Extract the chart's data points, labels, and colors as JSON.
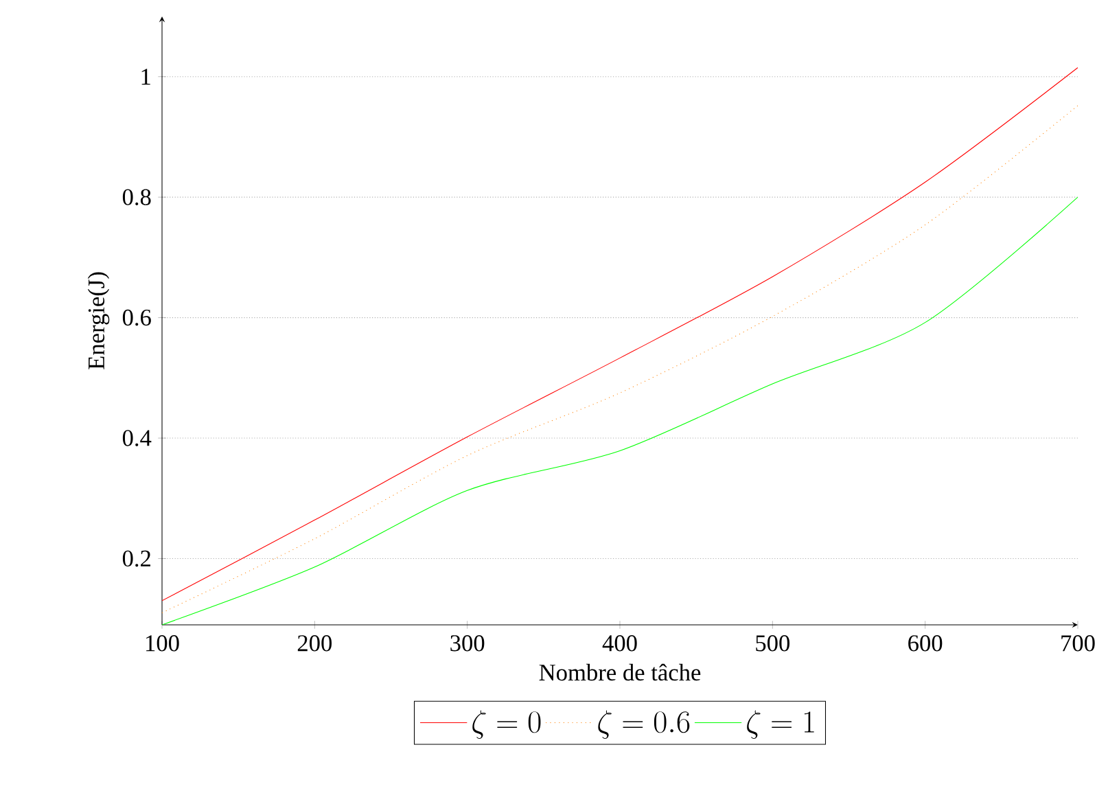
{
  "chart_data": {
    "type": "line",
    "xlabel": "Nombre de tâche",
    "ylabel": "Energie(J)",
    "x": [
      100,
      200,
      300,
      400,
      500,
      600,
      700
    ],
    "series": [
      {
        "name": "\\zeta = 0",
        "color": "#ff0000",
        "line_style": "solid",
        "values": [
          0.13,
          0.264,
          0.402,
          0.533,
          0.668,
          0.825,
          1.015
        ]
      },
      {
        "name": "\\zeta = 0.6",
        "color": "#ff8000",
        "line_style": "dotted",
        "values": [
          0.11,
          0.233,
          0.371,
          0.475,
          0.602,
          0.754,
          0.952
        ]
      },
      {
        "name": "\\zeta = 1",
        "color": "#00ff00",
        "line_style": "solid",
        "values": [
          0.09,
          0.186,
          0.313,
          0.379,
          0.49,
          0.592,
          0.8
        ]
      }
    ],
    "xlim": [
      100,
      700
    ],
    "ylim": [
      0.09,
      1.1
    ],
    "xticks": [
      100,
      200,
      300,
      400,
      500,
      600,
      700
    ],
    "yticks": [
      0.2,
      0.4,
      0.6,
      0.8,
      1
    ],
    "grid": "y",
    "legend": "bottom"
  }
}
